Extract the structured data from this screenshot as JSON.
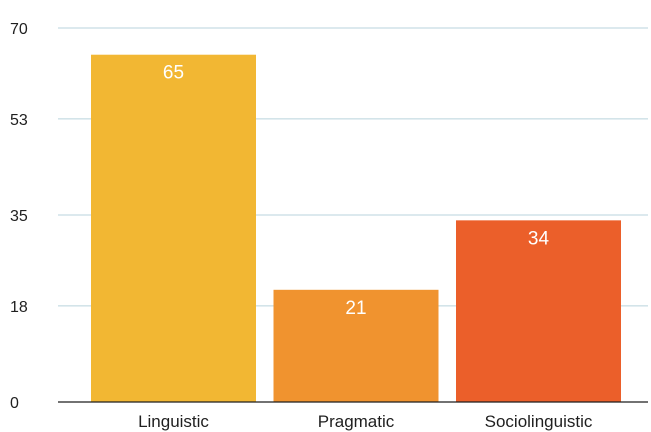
{
  "chart_data": {
    "type": "bar",
    "categories": [
      "Linguistic",
      "Pragmatic",
      "Sociolinguistic"
    ],
    "values": [
      65,
      21,
      34
    ],
    "data_labels": [
      "65",
      "21",
      "34"
    ],
    "colors": [
      "#f2b733",
      "#f0932f",
      "#eb5f2a"
    ],
    "y_ticks": [
      0,
      18,
      35,
      53,
      70
    ],
    "y_tick_labels": [
      "0",
      "18",
      "35",
      "53",
      "70"
    ],
    "ylim": [
      0,
      70
    ],
    "grid": true,
    "gridline_color": "#b9d3dc",
    "axis_color": "#1f1f1f",
    "label_color": "#ffffff"
  }
}
